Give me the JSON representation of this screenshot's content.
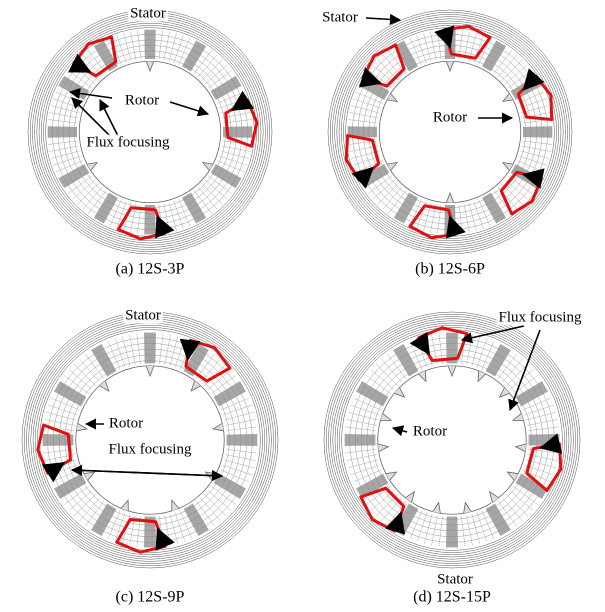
{
  "panels": [
    {
      "caption": "(a) 12S-3P",
      "labels": [
        "Stator",
        "Rotor",
        "Flux focusing"
      ]
    },
    {
      "caption": "(b) 12S-6P",
      "labels": [
        "Stator",
        "Rotor"
      ]
    },
    {
      "caption": "(c) 12S-9P",
      "labels": [
        "Stator",
        "Rotor",
        "Flux focusing"
      ]
    },
    {
      "caption": "(d) 12S-15P",
      "labels": [
        "Flux focusing",
        "Rotor",
        "Stator"
      ]
    }
  ]
}
